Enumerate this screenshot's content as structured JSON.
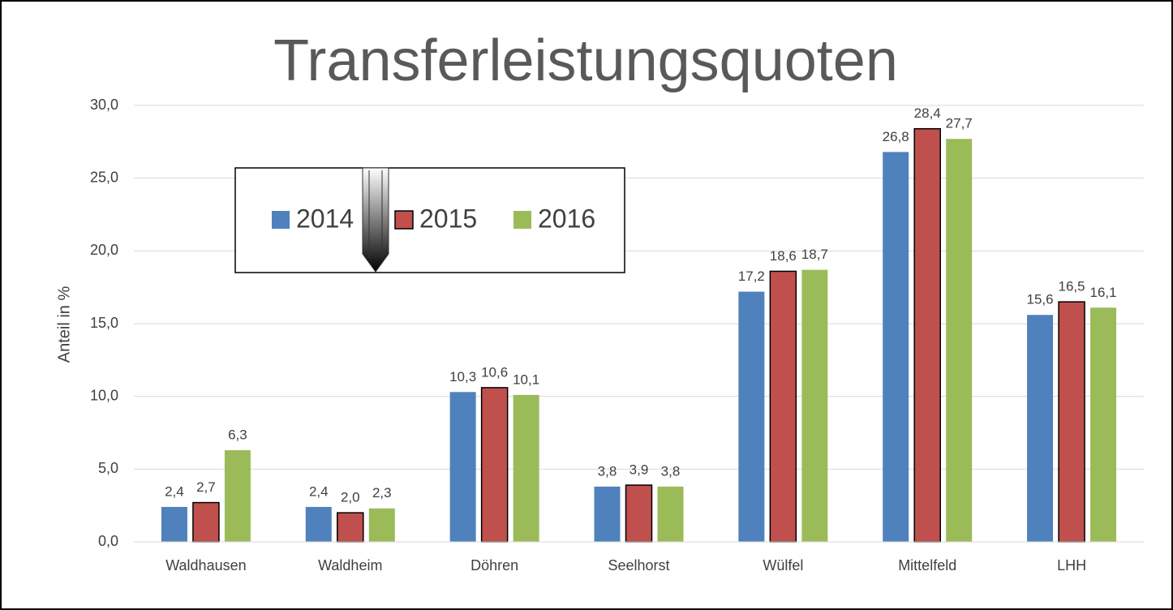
{
  "chart_data": {
    "type": "bar",
    "title": "Transferleistungsquoten",
    "y_label": "Anteil in %",
    "categories": [
      "Waldhausen",
      "Waldheim",
      "Döhren",
      "Seelhorst",
      "Wülfel",
      "Mittelfeld",
      "LHH"
    ],
    "series": [
      {
        "name": "2014",
        "color": "#4f81bd",
        "values": [
          2.4,
          2.4,
          10.3,
          3.8,
          17.2,
          26.8,
          15.6
        ],
        "value_labels": [
          "2,4",
          "2,4",
          "10,3",
          "3,8",
          "17,2",
          "26,8",
          "15,6"
        ]
      },
      {
        "name": "2015",
        "color": "#c0504d",
        "values": [
          2.7,
          2.0,
          10.6,
          3.9,
          18.6,
          28.4,
          16.5
        ],
        "value_labels": [
          "2,7",
          "2,0",
          "10,6",
          "3,9",
          "18,6",
          "28,4",
          "16,5"
        ]
      },
      {
        "name": "2016",
        "color": "#9bbb59",
        "values": [
          6.3,
          2.3,
          10.1,
          3.8,
          18.7,
          27.7,
          16.1
        ],
        "value_labels": [
          "6,3",
          "2,3",
          "10,1",
          "3,8",
          "18,7",
          "27,7",
          "16,1"
        ]
      }
    ],
    "ylim": [
      0,
      30
    ],
    "yticks": [
      {
        "value": 0,
        "label": "0,0"
      },
      {
        "value": 5,
        "label": "5,0"
      },
      {
        "value": 10,
        "label": "10,0"
      },
      {
        "value": 15,
        "label": "15,0"
      },
      {
        "value": 20,
        "label": "20,0"
      },
      {
        "value": 25,
        "label": "25,0"
      },
      {
        "value": 30,
        "label": "30,0"
      }
    ],
    "grid": true
  }
}
